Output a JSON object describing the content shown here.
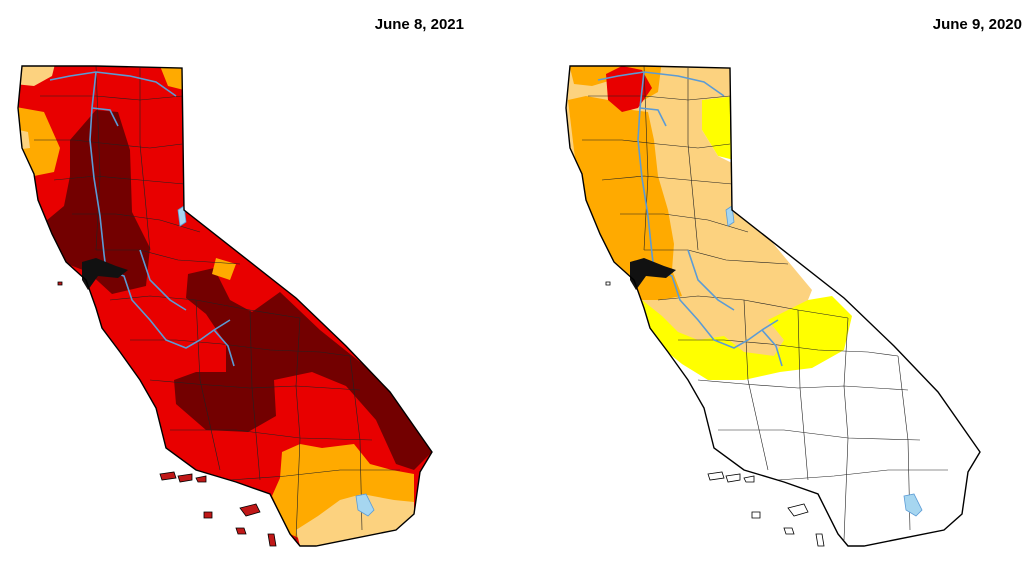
{
  "maps": [
    {
      "date_label": "June 8, 2021",
      "fill": {
        "base": "#e80000",
        "region_south": "#ffaa00",
        "region_coast_sw": "#fcd27f",
        "region_nw_strip": "#ffaa00",
        "region_nw_corner": "#fcd27f",
        "region_exceptional": "#730000",
        "islands": "#c01818"
      }
    },
    {
      "date_label": "June 9, 2020",
      "fill": {
        "base": "#ffffff",
        "region_d0": "#ffff00",
        "region_d1": "#fcd27f",
        "region_d2": "#ffaa00",
        "region_d3": "#e80000"
      }
    }
  ],
  "colors": {
    "outline": "#000000",
    "county_lines": "#222222",
    "water": "#5b9bd5",
    "lake_fill": "#a6d6f0"
  }
}
